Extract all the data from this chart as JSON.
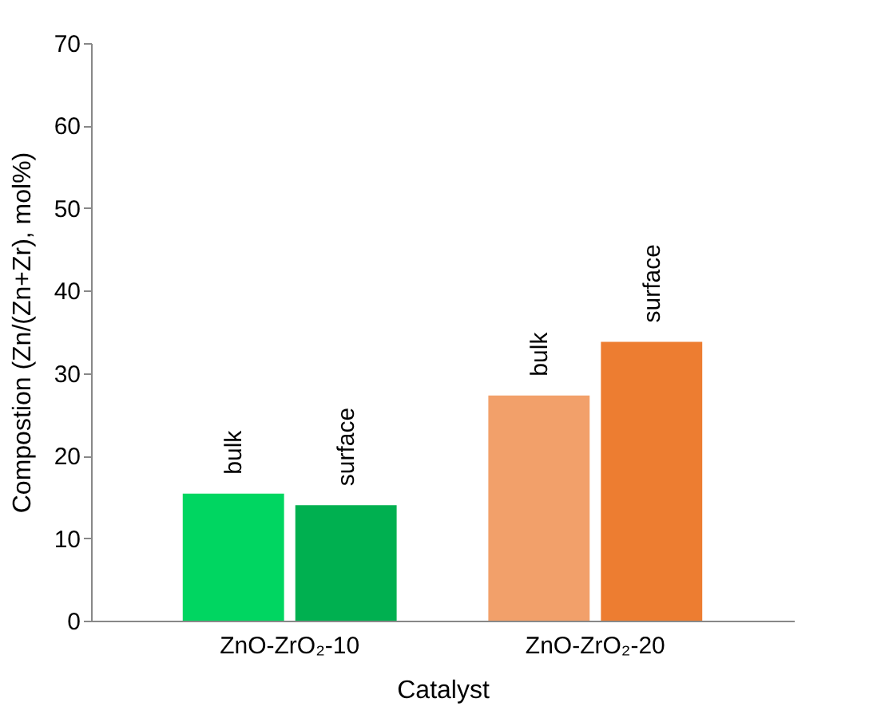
{
  "chart_data": {
    "type": "bar",
    "xlabel": "Catalyst",
    "ylabel": "Compostion (Zn/(Zn+Zr), mol%)",
    "categories": [
      "ZnO-ZrO₂-10",
      "ZnO-ZrO₂-20"
    ],
    "series": [
      {
        "name": "bulk",
        "colors": [
          "#00d661",
          "#f2a06a"
        ],
        "values": [
          15.4,
          27.3
        ]
      },
      {
        "name": "surface",
        "colors": [
          "#00b050",
          "#ed7d31"
        ],
        "values": [
          14.0,
          33.8
        ]
      }
    ],
    "ylim": [
      0,
      70
    ],
    "yticks": [
      0,
      10,
      20,
      30,
      40,
      50,
      60,
      70
    ],
    "grid": false,
    "legend": false
  }
}
